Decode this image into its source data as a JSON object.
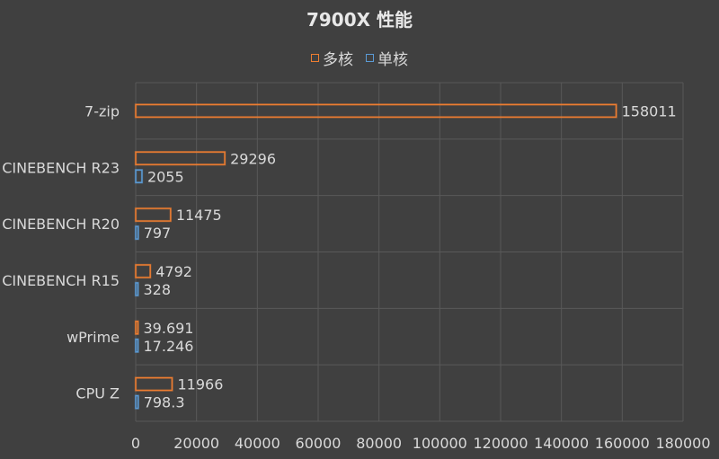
{
  "chart_data": {
    "type": "bar",
    "orientation": "horizontal",
    "title": "7900X 性能",
    "legend_position": "top",
    "grid": true,
    "xlim": [
      0,
      180000
    ],
    "x_ticks": [
      "0",
      "20000",
      "40000",
      "60000",
      "80000",
      "100000",
      "120000",
      "140000",
      "160000",
      "180000"
    ],
    "categories": [
      "7-zip",
      "CINEBENCH R23",
      "CINEBENCH R20",
      "CINEBENCH R15",
      "wPrime",
      "CPU Z"
    ],
    "series": [
      {
        "name": "多核",
        "color": "#ed7d31",
        "values": [
          158011,
          29296,
          11475,
          4792,
          39.691,
          11966
        ],
        "labels": [
          "158011",
          "29296",
          "11475",
          "4792",
          "39.691",
          "11966"
        ]
      },
      {
        "name": "单核",
        "color": "#5b9bd5",
        "values": [
          null,
          2055,
          797,
          328,
          17.246,
          798.3
        ],
        "labels": [
          "",
          "2055",
          "797",
          "328",
          "17.246",
          "798.3"
        ]
      }
    ]
  },
  "colors": {
    "background": "#404040",
    "grid": "#595959",
    "text": "#d9d9d9"
  }
}
